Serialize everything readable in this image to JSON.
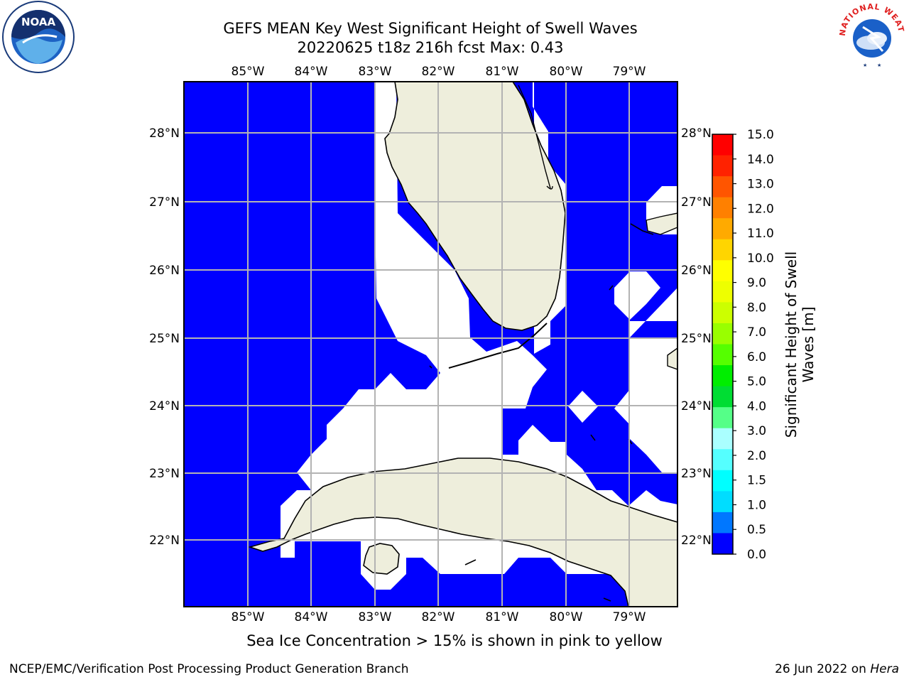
{
  "header": {
    "title_line1": "GEFS MEAN Key West Significant Height of Swell Waves",
    "title_line2": "20220625 t18z 216h fcst   Max: 0.43"
  },
  "logos": {
    "left": "NOAA",
    "right_ring_text": "NATIONAL WEATHER SERVICE"
  },
  "map": {
    "lon_labels": [
      "85°W",
      "84°W",
      "83°W",
      "82°W",
      "81°W",
      "80°W",
      "79°W"
    ],
    "lat_labels": [
      "28°N",
      "27°N",
      "26°N",
      "25°N",
      "24°N",
      "23°N",
      "22°N"
    ],
    "ocean_color": "#0000ff",
    "land_color": "#eeeedc",
    "grid_color": "#b3b3b3"
  },
  "colorbar": {
    "title": "Significant Height of Swell Waves [m]",
    "ticks": [
      "15.0",
      "14.0",
      "13.0",
      "12.0",
      "11.0",
      "10.0",
      "9.0",
      "8.0",
      "7.0",
      "6.0",
      "5.0",
      "4.0",
      "3.0",
      "2.0",
      "1.5",
      "1.0",
      "0.5",
      "0.0"
    ],
    "colors": [
      "#ff0000",
      "#ff2200",
      "#ff5500",
      "#ff8000",
      "#ffaa00",
      "#ffd500",
      "#ffff00",
      "#eeff00",
      "#ccff00",
      "#99ff00",
      "#55ff00",
      "#00ee00",
      "#00dd33",
      "#55ff88",
      "#aaffff",
      "#55ffff",
      "#00ffff",
      "#00ddff",
      "#0077ff",
      "#0000ff"
    ]
  },
  "footer": {
    "subtitle": "Sea Ice Concentration > 15% is shown in pink to yellow",
    "credit": "NCEP/EMC/Verification Post Processing Product Generation Branch",
    "date_prefix": "26 Jun 2022 on ",
    "machine": "Hera"
  }
}
